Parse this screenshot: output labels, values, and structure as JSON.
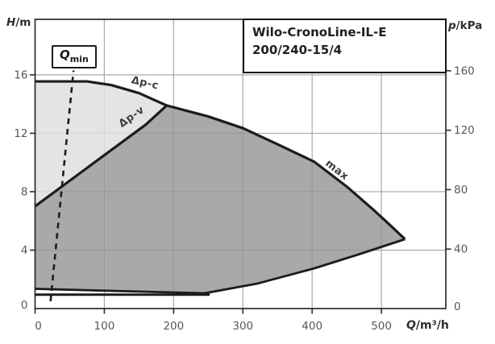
{
  "chart_data": {
    "type": "area",
    "title_line1": "Wilo-CronoLine-IL-E",
    "title_line2": "200/240-15/4",
    "x_axis": {
      "symbol": "Q",
      "unit": "/m³/h",
      "range": [
        0,
        593
      ],
      "ticks": [
        0,
        100,
        200,
        300,
        400,
        500
      ]
    },
    "y_axis_left": {
      "symbol": "H",
      "unit": "/m",
      "range": [
        0,
        19.8
      ],
      "ticks": [
        0,
        4,
        8,
        12,
        16
      ]
    },
    "y_axis_right": {
      "symbol": "p",
      "unit": "/kPa",
      "range": [
        0,
        194.6
      ],
      "ticks": [
        0,
        40,
        80,
        120,
        160
      ]
    },
    "qmin_label": {
      "symbol": "Q",
      "sub": "min"
    },
    "curve_labels": {
      "dpc": "Δp-c",
      "dpv": "Δp-v",
      "max": "max"
    },
    "grid": "on",
    "series": [
      {
        "name": "dpc-max-envelope",
        "dashed": false,
        "width": 3.2,
        "points": [
          [
            0,
            15.55
          ],
          [
            75,
            15.55
          ],
          [
            110,
            15.3
          ],
          [
            150,
            14.75
          ],
          [
            190,
            13.9
          ],
          [
            250,
            13.15
          ],
          [
            300,
            12.35
          ],
          [
            350,
            11.25
          ],
          [
            403,
            10.05
          ],
          [
            450,
            8.35
          ],
          [
            490,
            6.7
          ],
          [
            515,
            5.6
          ],
          [
            534,
            4.75
          ]
        ]
      },
      {
        "name": "dpv-curve",
        "dashed": false,
        "width": 3.2,
        "points": [
          [
            0,
            7.0
          ],
          [
            60,
            9.1
          ],
          [
            120,
            11.2
          ],
          [
            160,
            12.6
          ],
          [
            190,
            13.9
          ]
        ]
      },
      {
        "name": "min-floor-boundary",
        "dashed": false,
        "width": 2.8,
        "points": [
          [
            0,
            1.35
          ],
          [
            120,
            1.2
          ],
          [
            245,
            1.05
          ],
          [
            320,
            1.7
          ],
          [
            403,
            2.75
          ],
          [
            470,
            3.75
          ],
          [
            534,
            4.75
          ]
        ]
      },
      {
        "name": "base-line",
        "dashed": false,
        "width": 3.0,
        "points": [
          [
            0,
            0.95
          ],
          [
            252,
            0.95
          ]
        ]
      },
      {
        "name": "qmin-limit",
        "dashed": true,
        "width": 2.6,
        "points": [
          [
            22.3,
            0.5
          ],
          [
            55.5,
            16.3
          ]
        ]
      }
    ],
    "regions": [
      {
        "name": "dpc-control-field",
        "color": "rgba(223,223,223,0.85)",
        "points": [
          [
            0,
            7.0
          ],
          [
            60,
            9.1
          ],
          [
            120,
            11.2
          ],
          [
            160,
            12.6
          ],
          [
            190,
            13.9
          ],
          [
            150,
            14.75
          ],
          [
            110,
            15.3
          ],
          [
            75,
            15.55
          ],
          [
            0,
            15.55
          ]
        ]
      },
      {
        "name": "max-operating-field",
        "color": "rgba(148,148,148,0.8)",
        "points": [
          [
            0,
            7.0
          ],
          [
            60,
            9.1
          ],
          [
            120,
            11.2
          ],
          [
            160,
            12.6
          ],
          [
            190,
            13.9
          ],
          [
            250,
            13.15
          ],
          [
            300,
            12.35
          ],
          [
            350,
            11.25
          ],
          [
            403,
            10.05
          ],
          [
            450,
            8.35
          ],
          [
            490,
            6.7
          ],
          [
            515,
            5.6
          ],
          [
            534,
            4.75
          ],
          [
            470,
            3.75
          ],
          [
            403,
            2.75
          ],
          [
            320,
            1.7
          ],
          [
            245,
            1.05
          ],
          [
            120,
            1.2
          ],
          [
            0,
            1.35
          ]
        ]
      }
    ],
    "colors": {
      "curve": "#1c1c1c",
      "grid": "#a8a8a8",
      "frame": "#2a2a2a",
      "tick_text": "#575757",
      "label_text": "#3e3e3e"
    }
  }
}
